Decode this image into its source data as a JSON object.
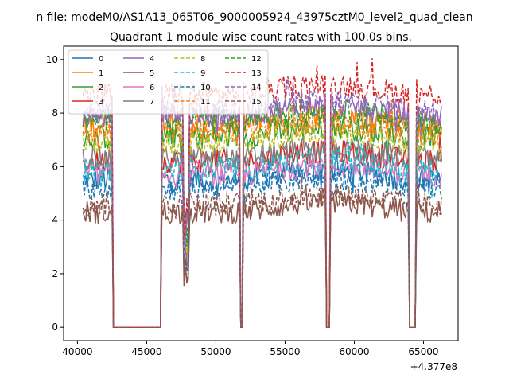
{
  "figure": {
    "suptitle": "n file: modeM0/AS1A13_065T06_9000005924_43975cztM0_level2_quad_clean",
    "title": "Quadrant 1 module wise count rates with 100.0s bins.",
    "x_offset_label": "+4.377e8"
  },
  "chart_data": {
    "type": "line",
    "title": "Quadrant 1 module wise count rates with 100.0s bins.",
    "xlabel": "",
    "ylabel": "",
    "x_offset": 437700000,
    "xlim": [
      39000,
      67500
    ],
    "ylim": [
      -0.5,
      10.5
    ],
    "x_ticks": [
      40000,
      45000,
      50000,
      55000,
      60000,
      65000
    ],
    "x_tick_labels": [
      "40000",
      "45000",
      "50000",
      "55000",
      "60000",
      "65000"
    ],
    "y_ticks": [
      0,
      2,
      4,
      6,
      8,
      10
    ],
    "y_tick_labels": [
      "0",
      "2",
      "4",
      "6",
      "8",
      "10"
    ],
    "grid": false,
    "legend_position": "top-left",
    "legend_columns": 4,
    "time_range": [
      40400,
      66300
    ],
    "gaps": [
      [
        42500,
        46100
      ],
      [
        51700,
        52000
      ],
      [
        57900,
        58300
      ],
      [
        63900,
        64500
      ]
    ],
    "dips": [
      [
        47600,
        48100
      ]
    ],
    "series": [
      {
        "name": "0",
        "color": "#1f77b4",
        "dash": "solid",
        "level": 5.5
      },
      {
        "name": "1",
        "color": "#ff7f0e",
        "dash": "solid",
        "level": 7.6
      },
      {
        "name": "2",
        "color": "#2ca02c",
        "dash": "solid",
        "level": 7.1
      },
      {
        "name": "3",
        "color": "#d62728",
        "dash": "solid",
        "level": 6.2
      },
      {
        "name": "4",
        "color": "#9467bd",
        "dash": "solid",
        "level": 7.9
      },
      {
        "name": "5",
        "color": "#8c564b",
        "dash": "solid",
        "level": 4.3
      },
      {
        "name": "6",
        "color": "#e377c2",
        "dash": "solid",
        "level": 5.7
      },
      {
        "name": "7",
        "color": "#7f7f7f",
        "dash": "solid",
        "level": 6.3
      },
      {
        "name": "8",
        "color": "#bcbd22",
        "dash": "dashed",
        "level": 6.9
      },
      {
        "name": "9",
        "color": "#17becf",
        "dash": "dashed",
        "level": 5.9
      },
      {
        "name": "10",
        "color": "#1f77b4",
        "dash": "dashed",
        "level": 5.2
      },
      {
        "name": "11",
        "color": "#ff7f0e",
        "dash": "dashed",
        "level": 7.3
      },
      {
        "name": "12",
        "color": "#2ca02c",
        "dash": "dashed",
        "level": 7.7
      },
      {
        "name": "13",
        "color": "#d62728",
        "dash": "dashed",
        "level": 8.7
      },
      {
        "name": "14",
        "color": "#9467bd",
        "dash": "dashed",
        "level": 8.1
      },
      {
        "name": "15",
        "color": "#8c564b",
        "dash": "dashed",
        "level": 4.6
      }
    ]
  }
}
